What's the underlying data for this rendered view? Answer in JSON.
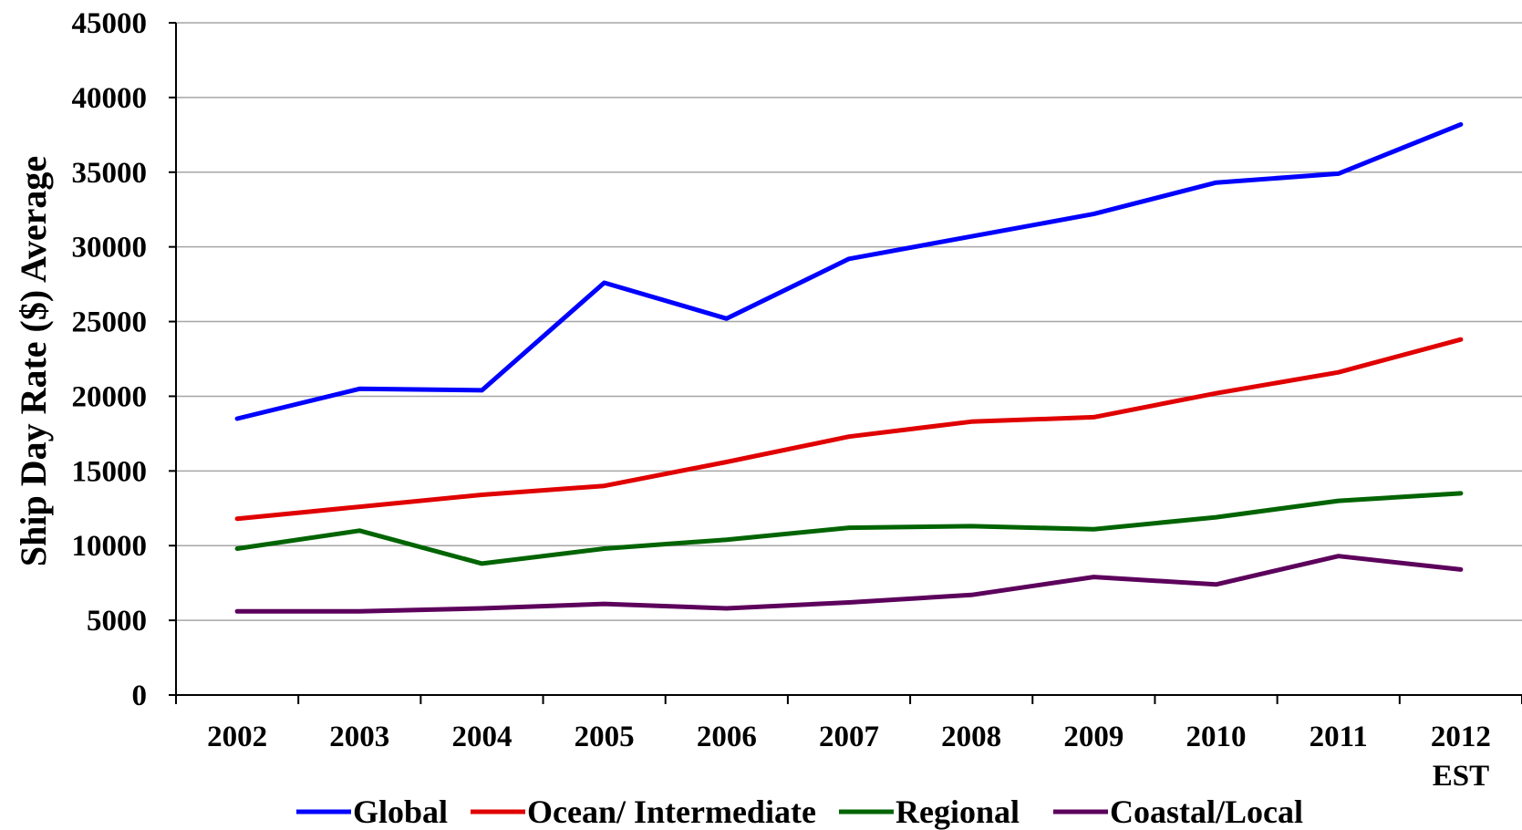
{
  "chart_data": {
    "type": "line",
    "title": "",
    "xlabel": "",
    "ylabel": "Ship Day Rate ($) Average",
    "categories": [
      "2002",
      "2003",
      "2004",
      "2005",
      "2006",
      "2007",
      "2008",
      "2009",
      "2010",
      "2011",
      "2012"
    ],
    "category_sublabels": [
      "",
      "",
      "",
      "",
      "",
      "",
      "",
      "",
      "",
      "",
      "EST"
    ],
    "ylim": [
      0,
      45000
    ],
    "yticks": [
      0,
      5000,
      10000,
      15000,
      20000,
      25000,
      30000,
      35000,
      40000,
      45000
    ],
    "grid": true,
    "legend_position": "bottom",
    "series": [
      {
        "name": "Global",
        "color": "#0000ff",
        "values": [
          18500,
          20500,
          20400,
          27600,
          25200,
          29200,
          30700,
          32200,
          34300,
          34900,
          38200
        ]
      },
      {
        "name": "Ocean/ Intermediate",
        "color": "#e00000",
        "values": [
          11800,
          12600,
          13400,
          14000,
          15600,
          17300,
          18300,
          18600,
          20200,
          21600,
          23800
        ]
      },
      {
        "name": "Regional",
        "color": "#006400",
        "values": [
          9800,
          11000,
          8800,
          9800,
          10400,
          11200,
          11300,
          11100,
          11900,
          13000,
          13500
        ]
      },
      {
        "name": "Coastal/Local",
        "color": "#5c005c",
        "values": [
          5600,
          5600,
          5800,
          6100,
          5800,
          6200,
          6700,
          7900,
          7400,
          9300,
          8400
        ]
      }
    ]
  }
}
